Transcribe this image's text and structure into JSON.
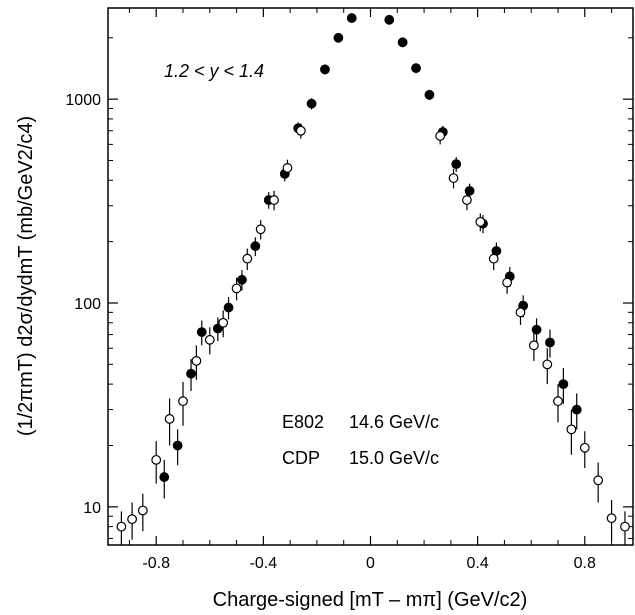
{
  "chart_data": {
    "type": "scatter",
    "title": "",
    "xlabel": "Charge-signed [mT – mπ] (GeV/c2)",
    "ylabel": "(1/2πmT) d2σ/dydmT (mb/GeV2/c4)",
    "xlim": [
      -0.98,
      0.98
    ],
    "ylim": [
      6.5,
      2800
    ],
    "yscale": "log",
    "x_ticks": [
      -0.8,
      -0.4,
      0,
      0.4,
      0.8
    ],
    "x_tick_labels": [
      "-0.8",
      "-0.4",
      "0",
      "0.4",
      "0.8"
    ],
    "y_ticks": [
      10,
      100,
      1000
    ],
    "y_tick_labels": [
      "10",
      "100",
      "1000"
    ],
    "grid": false,
    "annotations": {
      "rapidity": "1.2 < y < 1.4",
      "legend_filled_experiment": "E802",
      "legend_filled_beam": "14.6 GeV/c",
      "legend_open_experiment": "CDP",
      "legend_open_beam": "15.0 GeV/c"
    },
    "series": [
      {
        "name": "E802 14.6 GeV/c",
        "marker": "filled-circle",
        "x": [
          -0.77,
          -0.72,
          -0.67,
          -0.63,
          -0.57,
          -0.53,
          -0.48,
          -0.43,
          -0.38,
          -0.32,
          -0.27,
          -0.22,
          -0.17,
          -0.12,
          -0.07,
          0.07,
          0.12,
          0.17,
          0.22,
          0.27,
          0.32,
          0.37,
          0.42,
          0.47,
          0.52,
          0.57,
          0.62,
          0.67,
          0.72,
          0.77
        ],
        "y": [
          14,
          20,
          45,
          72,
          75,
          95,
          130,
          190,
          320,
          430,
          720,
          950,
          1400,
          2000,
          2500,
          2450,
          1900,
          1420,
          1050,
          690,
          480,
          355,
          245,
          180,
          135,
          97,
          74,
          64,
          40,
          30
        ],
        "yerr": [
          3,
          4,
          8,
          10,
          10,
          12,
          15,
          20,
          30,
          35,
          50,
          60,
          80,
          100,
          120,
          120,
          100,
          80,
          60,
          50,
          40,
          30,
          25,
          18,
          15,
          12,
          10,
          10,
          8,
          6
        ]
      },
      {
        "name": "CDP 15.0 GeV/c",
        "marker": "open-circle",
        "x": [
          -0.93,
          -0.89,
          -0.85,
          -0.8,
          -0.75,
          -0.7,
          -0.65,
          -0.6,
          -0.55,
          -0.5,
          -0.46,
          -0.41,
          -0.36,
          -0.31,
          -0.26,
          0.26,
          0.31,
          0.36,
          0.41,
          0.46,
          0.51,
          0.56,
          0.61,
          0.66,
          0.7,
          0.75,
          0.8,
          0.85,
          0.9,
          0.95
        ],
        "y": [
          8,
          8.7,
          9.6,
          17,
          27,
          33,
          52,
          66,
          80,
          118,
          165,
          230,
          320,
          460,
          700,
          660,
          410,
          320,
          250,
          165,
          126,
          90,
          62,
          50,
          33,
          24,
          19.5,
          13.5,
          8.8,
          8
        ],
        "yerr": [
          1.5,
          1.8,
          2,
          4,
          7,
          8,
          10,
          10,
          12,
          15,
          20,
          25,
          35,
          45,
          60,
          60,
          45,
          35,
          25,
          20,
          15,
          12,
          10,
          10,
          7,
          6,
          4,
          3,
          2,
          1.5
        ]
      }
    ]
  }
}
